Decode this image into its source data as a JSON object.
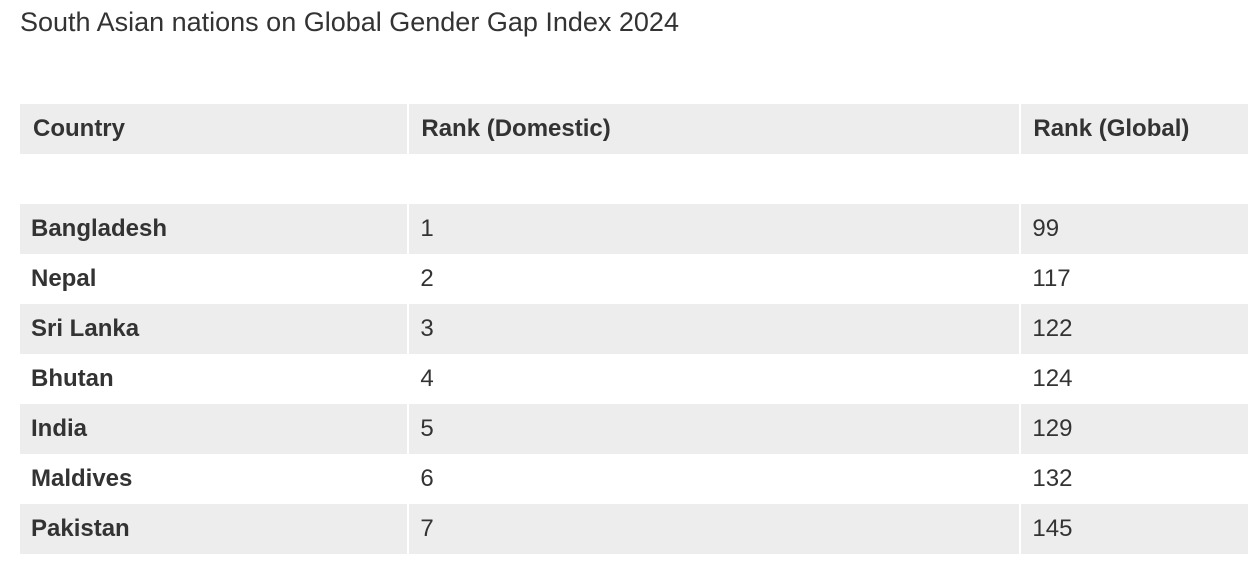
{
  "chart_data": {
    "type": "table",
    "title": "South Asian nations on Global Gender Gap Index 2024",
    "columns": [
      "Country",
      "Rank (Domestic)",
      "Rank (Global)"
    ],
    "rows": [
      {
        "country": "Bangladesh",
        "rank_domestic": "1",
        "rank_global": "99"
      },
      {
        "country": "Nepal",
        "rank_domestic": "2",
        "rank_global": "117"
      },
      {
        "country": "Sri Lanka",
        "rank_domestic": "3",
        "rank_global": "122"
      },
      {
        "country": "Bhutan",
        "rank_domestic": "4",
        "rank_global": "124"
      },
      {
        "country": "India",
        "rank_domestic": "5",
        "rank_global": "129"
      },
      {
        "country": "Maldives",
        "rank_domestic": "6",
        "rank_global": "132"
      },
      {
        "country": "Pakistan",
        "rank_domestic": "7",
        "rank_global": "145"
      }
    ]
  },
  "colors": {
    "stripe": "#ededed",
    "text": "#333333",
    "background": "#ffffff"
  }
}
